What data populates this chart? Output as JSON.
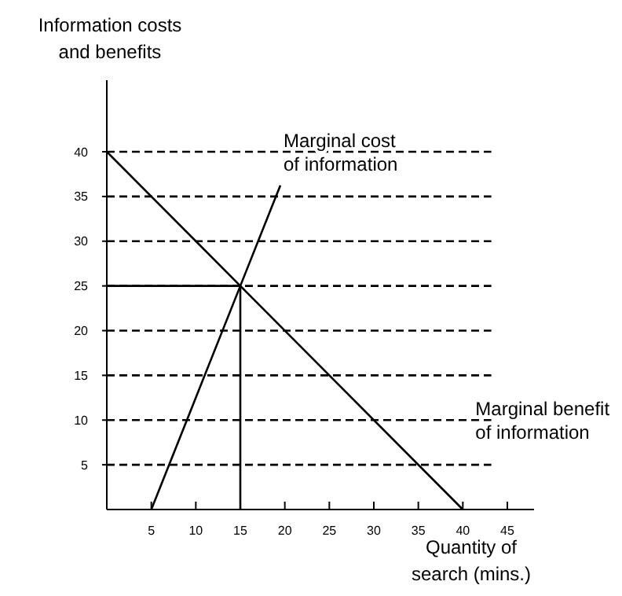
{
  "chart_data": {
    "type": "line",
    "ylabel": "Information costs\nand benefits",
    "xlabel": "Quantity of\nsearch (mins.)",
    "xlim": [
      0,
      48
    ],
    "ylim": [
      0,
      48
    ],
    "xticks": [
      5,
      10,
      15,
      20,
      25,
      30,
      35,
      40,
      45
    ],
    "yticks": [
      5,
      10,
      15,
      20,
      25,
      30,
      35,
      40
    ],
    "grid": "y",
    "marker": "none",
    "line_style": "solid",
    "series": [
      {
        "name": "Marginal cost\nof information",
        "color": "#000000",
        "x": [
          5,
          15,
          19.5
        ],
        "values": [
          0,
          25,
          36.25
        ]
      },
      {
        "name": "Marginal benefit\nof information",
        "color": "#000000",
        "x": [
          0,
          15,
          40
        ],
        "values": [
          40,
          25,
          0
        ]
      },
      {
        "color": "#000000",
        "x": [
          0,
          15,
          15
        ],
        "values": [
          25,
          25,
          0
        ]
      }
    ]
  }
}
